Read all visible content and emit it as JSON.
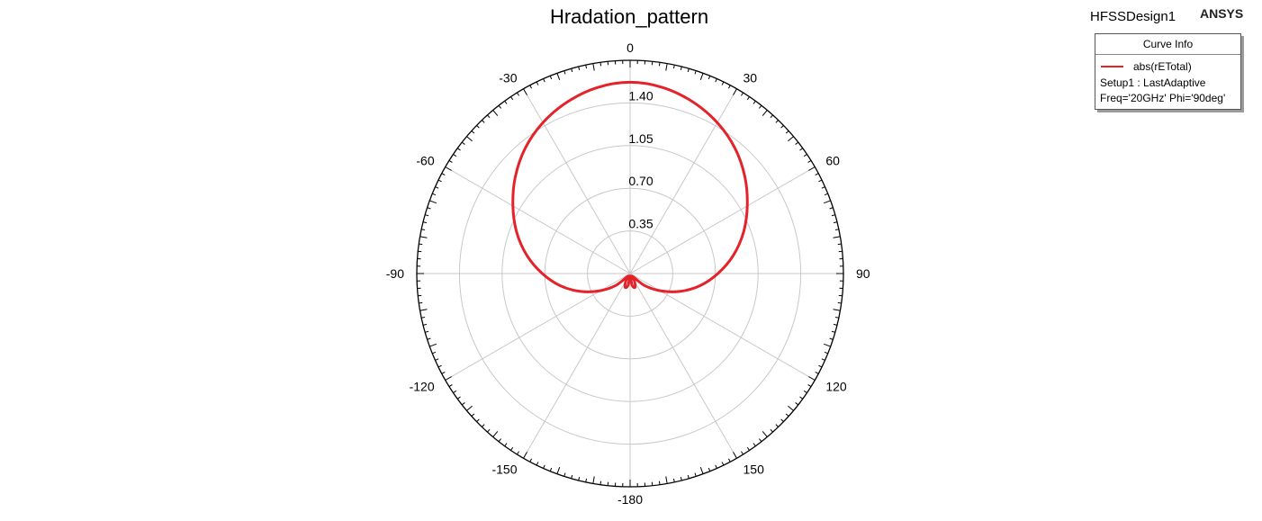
{
  "header": {
    "title": "Hradation_pattern",
    "design_name": "HFSSDesign1",
    "brand": "ANSYS"
  },
  "legend": {
    "heading": "Curve Info",
    "trace_label": "abs(rETotal)",
    "setup_line": "Setup1 : LastAdaptive",
    "params_line": "Freq='20GHz' Phi='90deg'"
  },
  "chart_data": {
    "type": "polar_line",
    "title": "Hradation_pattern",
    "angle_unit": "deg",
    "angle_ticks": [
      0,
      30,
      60,
      90,
      120,
      150,
      -180,
      -150,
      -120,
      -90,
      -60,
      -30
    ],
    "radial_ticks": [
      "0.35",
      "0.70",
      "1.05",
      "1.40"
    ],
    "radial_range": [
      0,
      1.75
    ],
    "grid": true,
    "legend_position": "top-right",
    "series": [
      {
        "name": "abs(rETotal)",
        "color": "#e4222a",
        "theta": [
          -180,
          -170,
          -160,
          -150,
          -140,
          -130,
          -120,
          -110,
          -100,
          -90,
          -80,
          -70,
          -60,
          -50,
          -40,
          -30,
          -20,
          -10,
          0,
          10,
          20,
          30,
          40,
          50,
          60,
          70,
          80,
          90,
          100,
          110,
          120,
          130,
          140,
          150,
          160,
          170,
          180
        ],
        "r": [
          0.01,
          0.1,
          0.12,
          0.07,
          0.03,
          0.15,
          0.28,
          0.43,
          0.58,
          0.72,
          0.86,
          0.99,
          1.11,
          1.23,
          1.34,
          1.43,
          1.5,
          1.55,
          1.57,
          1.55,
          1.5,
          1.43,
          1.34,
          1.23,
          1.11,
          0.99,
          0.86,
          0.72,
          0.58,
          0.43,
          0.28,
          0.15,
          0.03,
          0.07,
          0.12,
          0.1,
          0.01
        ]
      }
    ]
  }
}
